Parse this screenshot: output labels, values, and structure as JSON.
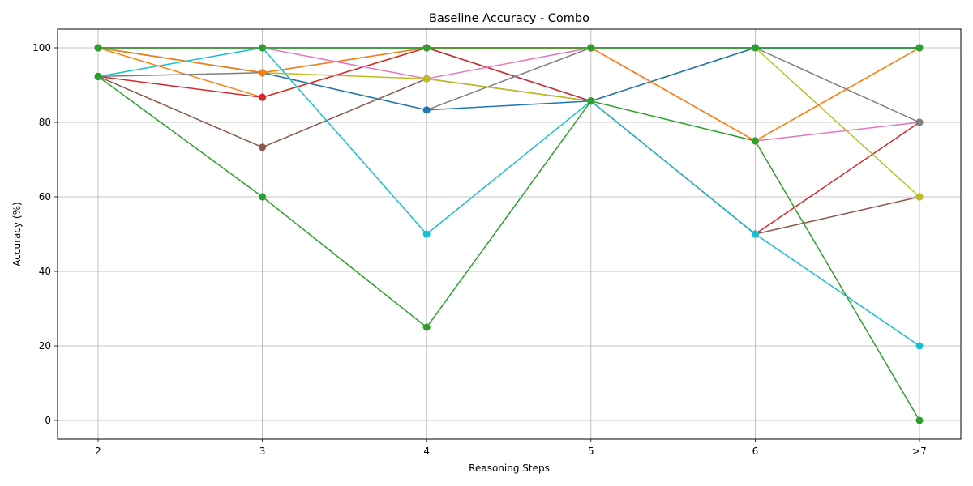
{
  "chart_data": {
    "type": "line",
    "title": "Baseline Accuracy - Combo",
    "xlabel": "Reasoning Steps",
    "ylabel": "Accuracy (%)",
    "categories": [
      "2",
      "3",
      "4",
      "5",
      "6",
      ">7"
    ],
    "ylim": [
      -5,
      105
    ],
    "yticks": [
      0,
      20,
      40,
      60,
      80,
      100
    ],
    "grid": true,
    "marker": "circle",
    "series": [
      {
        "color": "#1f77b4",
        "values": [
          100,
          93.3,
          100,
          85.7,
          100,
          100
        ]
      },
      {
        "color": "#ff7f0e",
        "values": [
          100,
          86.7,
          100,
          100,
          75,
          100
        ]
      },
      {
        "color": "#2ca02c",
        "values": [
          100,
          100,
          100,
          100,
          100,
          100
        ]
      },
      {
        "color": "#d62728",
        "values": [
          92.3,
          86.7,
          100,
          85.7,
          50,
          80
        ]
      },
      {
        "color": "#9467bd",
        "values": [
          100,
          100,
          100,
          100,
          100,
          100
        ]
      },
      {
        "color": "#8c564b",
        "values": [
          92.3,
          73.3,
          91.7,
          85.7,
          50,
          60
        ]
      },
      {
        "color": "#e377c2",
        "values": [
          100,
          100,
          91.7,
          100,
          75,
          80
        ]
      },
      {
        "color": "#7f7f7f",
        "values": [
          92.3,
          93.3,
          83.3,
          100,
          100,
          80
        ]
      },
      {
        "color": "#bcbd22",
        "values": [
          100,
          93.3,
          91.7,
          85.7,
          100,
          60
        ]
      },
      {
        "color": "#17becf",
        "values": [
          92.3,
          100,
          50,
          85.7,
          50,
          20
        ]
      },
      {
        "color": "#1f77b4",
        "values": [
          100,
          93.3,
          83.3,
          85.7,
          100,
          100
        ]
      },
      {
        "color": "#ff7f0e",
        "values": [
          100,
          93.3,
          100,
          100,
          75,
          100
        ]
      },
      {
        "color": "#2ca02c",
        "values": [
          92.3,
          60,
          25,
          85.7,
          75,
          0
        ]
      },
      {
        "color": "#2ca02c",
        "values": [
          100,
          100,
          100,
          100,
          100,
          100
        ]
      }
    ]
  }
}
